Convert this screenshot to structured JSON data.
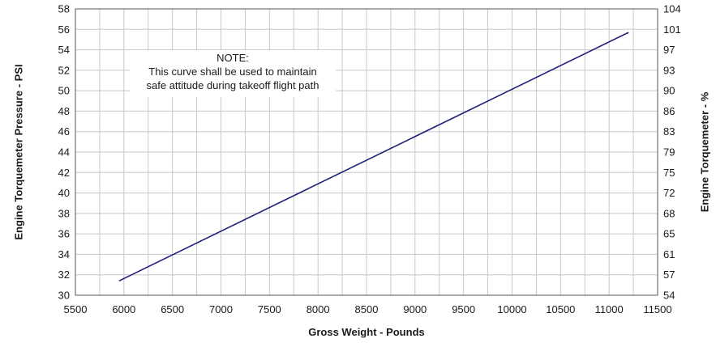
{
  "chart_data": {
    "type": "line",
    "title": "",
    "xlabel": "Gross Weight - Pounds",
    "ylabel": "Engine Torquemeter Pressure - PSI",
    "y2label": "Engine Torquemeter - %",
    "xlim": [
      5500,
      11500
    ],
    "ylim": [
      30,
      58
    ],
    "x_ticks": [
      5500,
      6000,
      6500,
      7000,
      7500,
      8000,
      8500,
      9000,
      9500,
      10000,
      10500,
      11000,
      11500
    ],
    "y_ticks": [
      30,
      32,
      34,
      36,
      38,
      40,
      42,
      44,
      46,
      48,
      50,
      52,
      54,
      56,
      58
    ],
    "y2_ticks": [
      "54",
      "57",
      "61",
      "65",
      "68",
      "72",
      "75",
      "79",
      "83",
      "86",
      "90",
      "93",
      "97",
      "101",
      "104"
    ],
    "x_minor_step": 250,
    "grid": true,
    "line_color": "#1f1f7a",
    "series": [
      {
        "x": [
          5950,
          11200
        ],
        "y": [
          31.4,
          55.7
        ]
      }
    ],
    "note": {
      "lines": [
        "NOTE:",
        "This curve shall be used to maintain",
        "safe attitude during takeoff flight path"
      ]
    }
  }
}
